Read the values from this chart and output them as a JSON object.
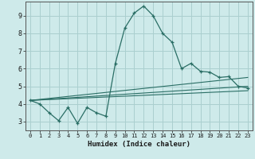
{
  "xlabel": "Humidex (Indice chaleur)",
  "xlim": [
    -0.5,
    23.5
  ],
  "ylim": [
    2.5,
    9.8
  ],
  "yticks": [
    3,
    4,
    5,
    6,
    7,
    8,
    9
  ],
  "xticks": [
    0,
    1,
    2,
    3,
    4,
    5,
    6,
    7,
    8,
    9,
    10,
    11,
    12,
    13,
    14,
    15,
    16,
    17,
    18,
    19,
    20,
    21,
    22,
    23
  ],
  "bg_color": "#ceeaea",
  "line_color": "#2a6e65",
  "grid_color": "#aacfcf",
  "main_x": [
    0,
    1,
    2,
    3,
    4,
    5,
    6,
    7,
    8,
    9,
    10,
    11,
    12,
    13,
    14,
    15,
    16,
    17,
    18,
    19,
    20,
    21,
    22,
    23
  ],
  "main_y": [
    4.2,
    4.0,
    3.5,
    3.05,
    3.8,
    2.9,
    3.8,
    3.5,
    3.3,
    6.3,
    8.3,
    9.15,
    9.55,
    9.0,
    8.0,
    7.5,
    6.0,
    6.3,
    5.85,
    5.8,
    5.5,
    5.55,
    5.0,
    4.9
  ],
  "line2_x": [
    0,
    23
  ],
  "line2_y": [
    4.2,
    5.5
  ],
  "line3_x": [
    0,
    23
  ],
  "line3_y": [
    4.2,
    5.0
  ],
  "line4_x": [
    0,
    23
  ],
  "line4_y": [
    4.2,
    4.75
  ]
}
